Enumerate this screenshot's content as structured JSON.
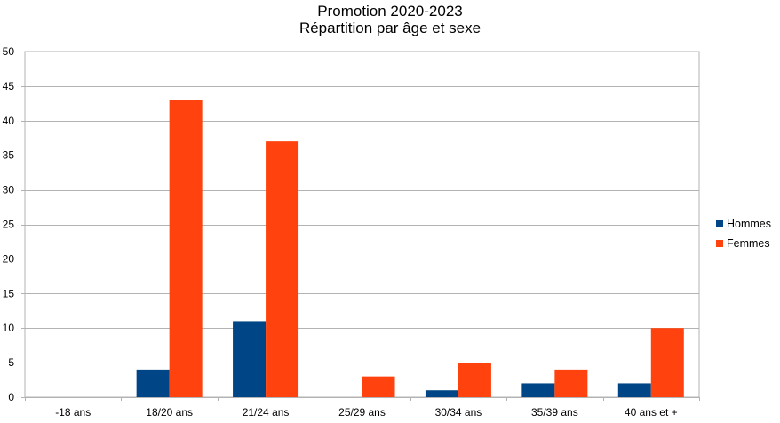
{
  "chart_data": {
    "type": "bar",
    "title": "Promotion 2020-2023",
    "subtitle": "Répartition par âge et sexe",
    "xlabel": "",
    "ylabel": "",
    "categories": [
      "-18 ans",
      "18/20 ans",
      "21/24 ans",
      "25/29 ans",
      "30/34 ans",
      "35/39 ans",
      "40 ans et +"
    ],
    "series": [
      {
        "name": "Hommes",
        "color": "#004586",
        "values": [
          0,
          4,
          11,
          0,
          1,
          2,
          2
        ]
      },
      {
        "name": "Femmes",
        "color": "#ff420e",
        "values": [
          0,
          43,
          37,
          3,
          5,
          4,
          10
        ]
      }
    ],
    "ylim": [
      0,
      50
    ],
    "yticks": [
      "0",
      "5",
      "10",
      "15",
      "20",
      "25",
      "30",
      "35",
      "40",
      "45",
      "50"
    ],
    "grid": true,
    "legend_position": "right"
  }
}
